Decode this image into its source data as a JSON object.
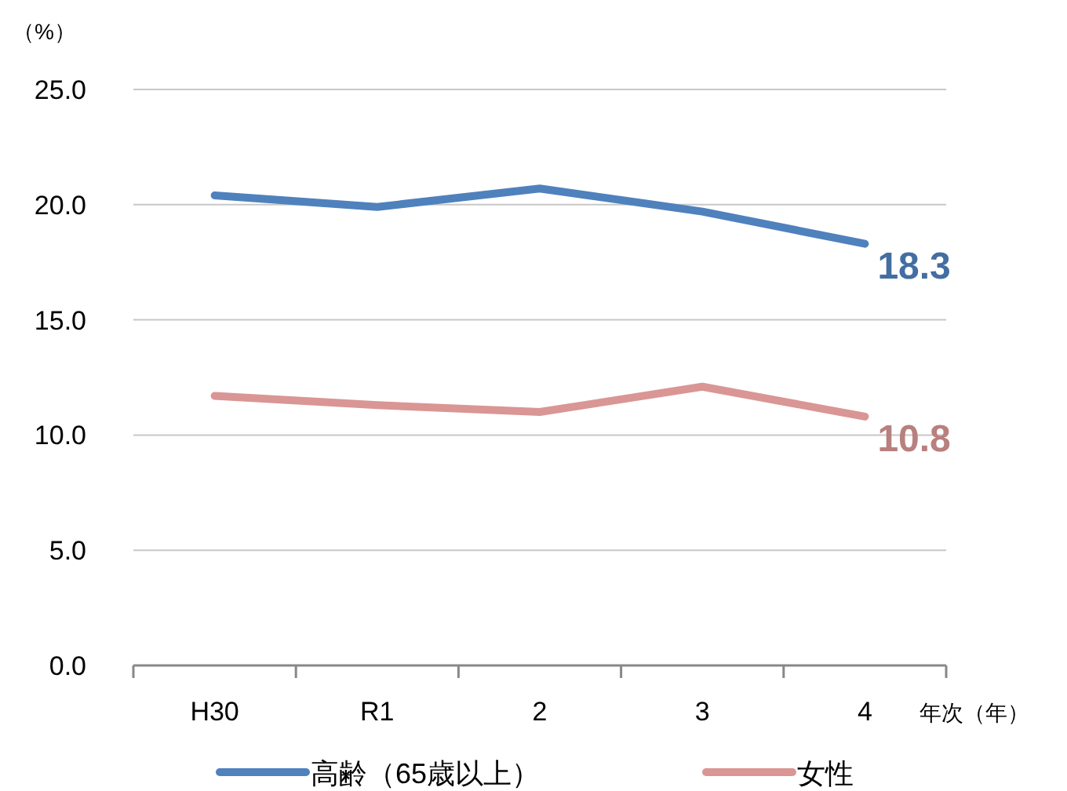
{
  "chart_data": {
    "type": "line",
    "ylabel": "（%）",
    "xlabel": "年次（年）",
    "categories": [
      "H30",
      "R1",
      "2",
      "3",
      "4"
    ],
    "series": [
      {
        "name": "高齢（65歳以上）",
        "color": "#4f81bd",
        "values": [
          20.4,
          19.9,
          20.7,
          19.7,
          18.3
        ],
        "value_labels": [
          null,
          null,
          null,
          null,
          "18.3"
        ]
      },
      {
        "name": "女性",
        "color": "#d99694",
        "values": [
          11.7,
          11.3,
          11.0,
          12.1,
          10.8
        ],
        "value_labels": [
          null,
          null,
          null,
          null,
          "10.8"
        ]
      }
    ],
    "ylim": [
      0,
      25
    ],
    "yticks": [
      {
        "value": 0,
        "label": "0.0"
      },
      {
        "value": 5,
        "label": "5.0"
      },
      {
        "value": 10,
        "label": "10.0"
      },
      {
        "value": 15,
        "label": "15.0"
      },
      {
        "value": 20,
        "label": "20.0"
      },
      {
        "value": 25,
        "label": "25.0"
      }
    ],
    "grid": "y",
    "legend": "bottom",
    "marker": "none",
    "line_style": "solid"
  }
}
